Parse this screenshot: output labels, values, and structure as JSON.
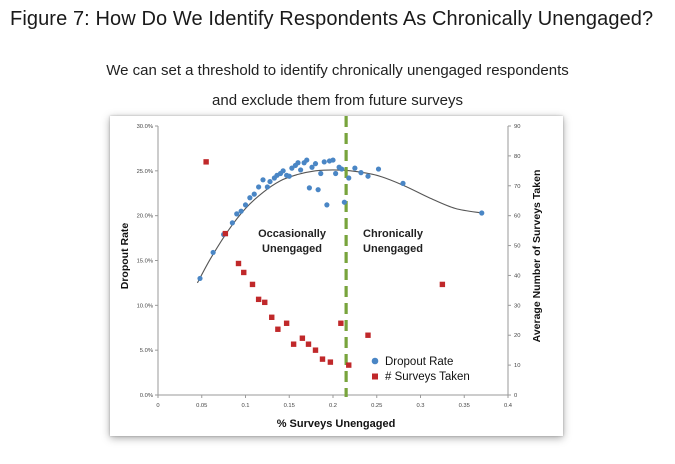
{
  "figure": {
    "title": "Figure 7: How Do We Identify Respondents As Chronically Unengaged?",
    "subtitle_line1": "We can set a threshold to identify chronically unengaged respondents",
    "subtitle_line2": "and exclude them from future surveys"
  },
  "colors": {
    "dropout": "#4a86c5",
    "surveys": "#c0282a",
    "threshold": "#78a43c",
    "curve": "#555555"
  },
  "chart_data": {
    "type": "scatter",
    "xlabel": "% Surveys Unengaged",
    "ylabel_left": "Dropout Rate",
    "ylabel_right": "Average Number of Surveys Taken",
    "xlim": [
      0,
      0.4
    ],
    "ylim_left": [
      0,
      0.3
    ],
    "ylim_right": [
      0,
      90
    ],
    "x_ticks": [
      "0",
      "0.05",
      "0.1",
      "0.15",
      "0.2",
      "0.25",
      "0.3",
      "0.35",
      "0.4"
    ],
    "y_left_ticks": [
      "0.0%",
      "5.0%",
      "10.0%",
      "15.0%",
      "20.0%",
      "25.0%",
      "30.0%"
    ],
    "y_right_ticks": [
      "0",
      "10",
      "20",
      "30",
      "40",
      "50",
      "60",
      "70",
      "80",
      "90"
    ],
    "threshold_x": 0.215,
    "annotations": {
      "left_line1": "Occasionally",
      "left_line2": "Unengaged",
      "right_line1": "Chronically",
      "right_line2": "Unengaged"
    },
    "legend": {
      "position": "bottom-right",
      "items": [
        "Dropout Rate",
        "# Surveys Taken"
      ]
    },
    "series": [
      {
        "name": "Dropout Rate",
        "axis": "left",
        "marker": "circle",
        "points": [
          [
            0.048,
            0.13
          ],
          [
            0.063,
            0.159
          ],
          [
            0.075,
            0.179
          ],
          [
            0.085,
            0.192
          ],
          [
            0.09,
            0.202
          ],
          [
            0.095,
            0.205
          ],
          [
            0.1,
            0.212
          ],
          [
            0.105,
            0.22
          ],
          [
            0.11,
            0.224
          ],
          [
            0.115,
            0.232
          ],
          [
            0.12,
            0.24
          ],
          [
            0.125,
            0.232
          ],
          [
            0.128,
            0.238
          ],
          [
            0.133,
            0.242
          ],
          [
            0.136,
            0.245
          ],
          [
            0.14,
            0.247
          ],
          [
            0.143,
            0.25
          ],
          [
            0.147,
            0.245
          ],
          [
            0.15,
            0.244
          ],
          [
            0.153,
            0.253
          ],
          [
            0.157,
            0.256
          ],
          [
            0.16,
            0.259
          ],
          [
            0.163,
            0.251
          ],
          [
            0.167,
            0.259
          ],
          [
            0.17,
            0.262
          ],
          [
            0.173,
            0.231
          ],
          [
            0.176,
            0.254
          ],
          [
            0.18,
            0.258
          ],
          [
            0.183,
            0.229
          ],
          [
            0.186,
            0.247
          ],
          [
            0.19,
            0.26
          ],
          [
            0.193,
            0.212
          ],
          [
            0.196,
            0.261
          ],
          [
            0.2,
            0.262
          ],
          [
            0.203,
            0.247
          ],
          [
            0.207,
            0.254
          ],
          [
            0.21,
            0.252
          ],
          [
            0.213,
            0.215
          ],
          [
            0.218,
            0.242
          ],
          [
            0.225,
            0.253
          ],
          [
            0.232,
            0.248
          ],
          [
            0.24,
            0.244
          ],
          [
            0.252,
            0.252
          ],
          [
            0.28,
            0.236
          ],
          [
            0.37,
            0.203
          ]
        ]
      },
      {
        "name": "# Surveys Taken",
        "axis": "right",
        "marker": "square",
        "points": [
          [
            0.055,
            78
          ],
          [
            0.077,
            54
          ],
          [
            0.092,
            44
          ],
          [
            0.098,
            41
          ],
          [
            0.108,
            37
          ],
          [
            0.115,
            32
          ],
          [
            0.122,
            31
          ],
          [
            0.13,
            26
          ],
          [
            0.137,
            22
          ],
          [
            0.147,
            24
          ],
          [
            0.155,
            17
          ],
          [
            0.165,
            19
          ],
          [
            0.172,
            17
          ],
          [
            0.18,
            15
          ],
          [
            0.188,
            12
          ],
          [
            0.197,
            11
          ],
          [
            0.209,
            24
          ],
          [
            0.218,
            10
          ],
          [
            0.24,
            20
          ],
          [
            0.325,
            37
          ]
        ]
      }
    ],
    "trend_curve": {
      "series": "Dropout Rate",
      "points": [
        [
          0.045,
          0.125
        ],
        [
          0.06,
          0.152
        ],
        [
          0.08,
          0.183
        ],
        [
          0.1,
          0.208
        ],
        [
          0.12,
          0.226
        ],
        [
          0.14,
          0.239
        ],
        [
          0.16,
          0.246
        ],
        [
          0.18,
          0.25
        ],
        [
          0.2,
          0.251
        ],
        [
          0.22,
          0.25
        ],
        [
          0.25,
          0.245
        ],
        [
          0.28,
          0.234
        ],
        [
          0.31,
          0.22
        ],
        [
          0.34,
          0.208
        ],
        [
          0.37,
          0.203
        ]
      ]
    }
  }
}
